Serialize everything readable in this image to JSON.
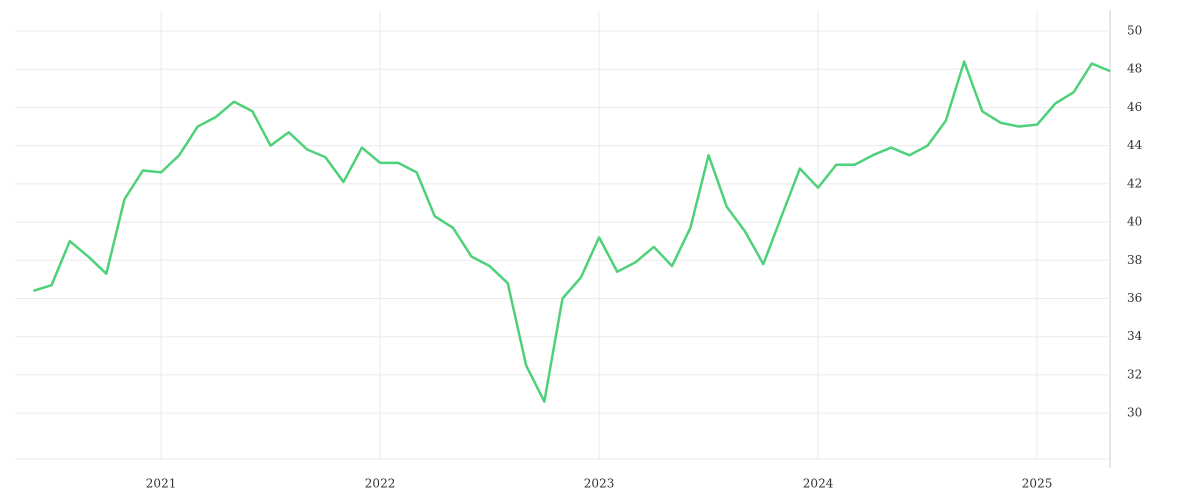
{
  "chart_data": {
    "type": "line",
    "x": [
      2020.417,
      2020.5,
      2020.583,
      2020.667,
      2020.75,
      2020.833,
      2020.917,
      2021.0,
      2021.083,
      2021.167,
      2021.25,
      2021.333,
      2021.417,
      2021.5,
      2021.583,
      2021.667,
      2021.75,
      2021.833,
      2021.917,
      2022.0,
      2022.083,
      2022.167,
      2022.25,
      2022.333,
      2022.417,
      2022.5,
      2022.583,
      2022.667,
      2022.75,
      2022.833,
      2022.917,
      2023.0,
      2023.083,
      2023.167,
      2023.25,
      2023.333,
      2023.417,
      2023.5,
      2023.583,
      2023.667,
      2023.75,
      2023.833,
      2023.917,
      2024.0,
      2024.083,
      2024.167,
      2024.25,
      2024.333,
      2024.417,
      2024.5,
      2024.583,
      2024.667,
      2024.75,
      2024.833,
      2024.917,
      2025.0,
      2025.083,
      2025.167,
      2025.25,
      2025.333
    ],
    "series": [
      {
        "color": "#4fd17a",
        "values": [
          36.4,
          36.7,
          39.0,
          38.2,
          37.3,
          41.2,
          42.7,
          42.6,
          43.5,
          45.0,
          45.5,
          46.3,
          45.8,
          44.0,
          44.7,
          43.8,
          43.4,
          42.1,
          43.9,
          43.1,
          43.1,
          42.6,
          40.3,
          39.7,
          38.2,
          37.7,
          36.8,
          32.5,
          30.6,
          36.0,
          37.1,
          39.2,
          37.4,
          37.9,
          38.7,
          37.7,
          39.7,
          43.5,
          40.8,
          39.5,
          37.8,
          40.3,
          42.8,
          41.8,
          43.0,
          43.0,
          43.5,
          43.9,
          43.5,
          44.0,
          45.3,
          48.4,
          45.8,
          45.2,
          45.0,
          45.1,
          46.2,
          46.8,
          48.3,
          47.9
        ]
      }
    ],
    "xlim": [
      2020.333,
      2025.333
    ],
    "xticks": [
      2021,
      2022,
      2023,
      2024,
      2025
    ],
    "ylim": [
      27.6,
      51.1
    ],
    "yticks": [
      30,
      32,
      34,
      36,
      38,
      40,
      42,
      44,
      46,
      48,
      50
    ],
    "grid": true
  }
}
